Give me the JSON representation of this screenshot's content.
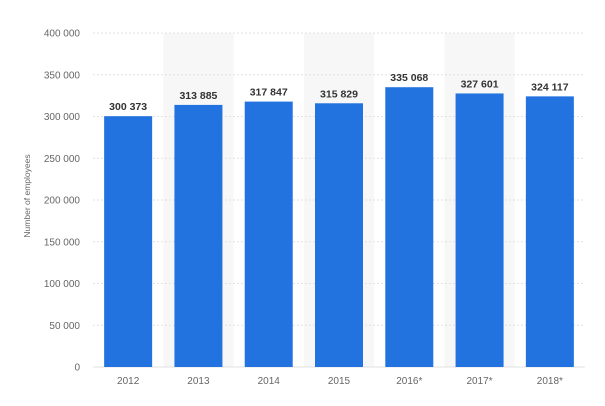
{
  "chart_data": {
    "type": "bar",
    "title": "",
    "xlabel": "",
    "ylabel": "Number of employees",
    "categories": [
      "2012",
      "2013",
      "2014",
      "2015",
      "2016*",
      "2017*",
      "2018*"
    ],
    "values": [
      300373,
      313885,
      317847,
      315829,
      335068,
      327601,
      324117
    ],
    "value_labels": [
      "300 373",
      "313 885",
      "317 847",
      "315 829",
      "335 068",
      "327 601",
      "324 117"
    ],
    "ylim": [
      0,
      400000
    ],
    "yticks": [
      0,
      50000,
      100000,
      150000,
      200000,
      250000,
      300000,
      350000,
      400000
    ],
    "ytick_labels": [
      "0",
      "50 000",
      "100 000",
      "150 000",
      "200 000",
      "250 000",
      "300 000",
      "350 000",
      "400 000"
    ],
    "grid": true,
    "bar_color": "#2272e0",
    "alt_column_band_color": "#f7f7f7",
    "grid_color": "#e2e2e2"
  }
}
